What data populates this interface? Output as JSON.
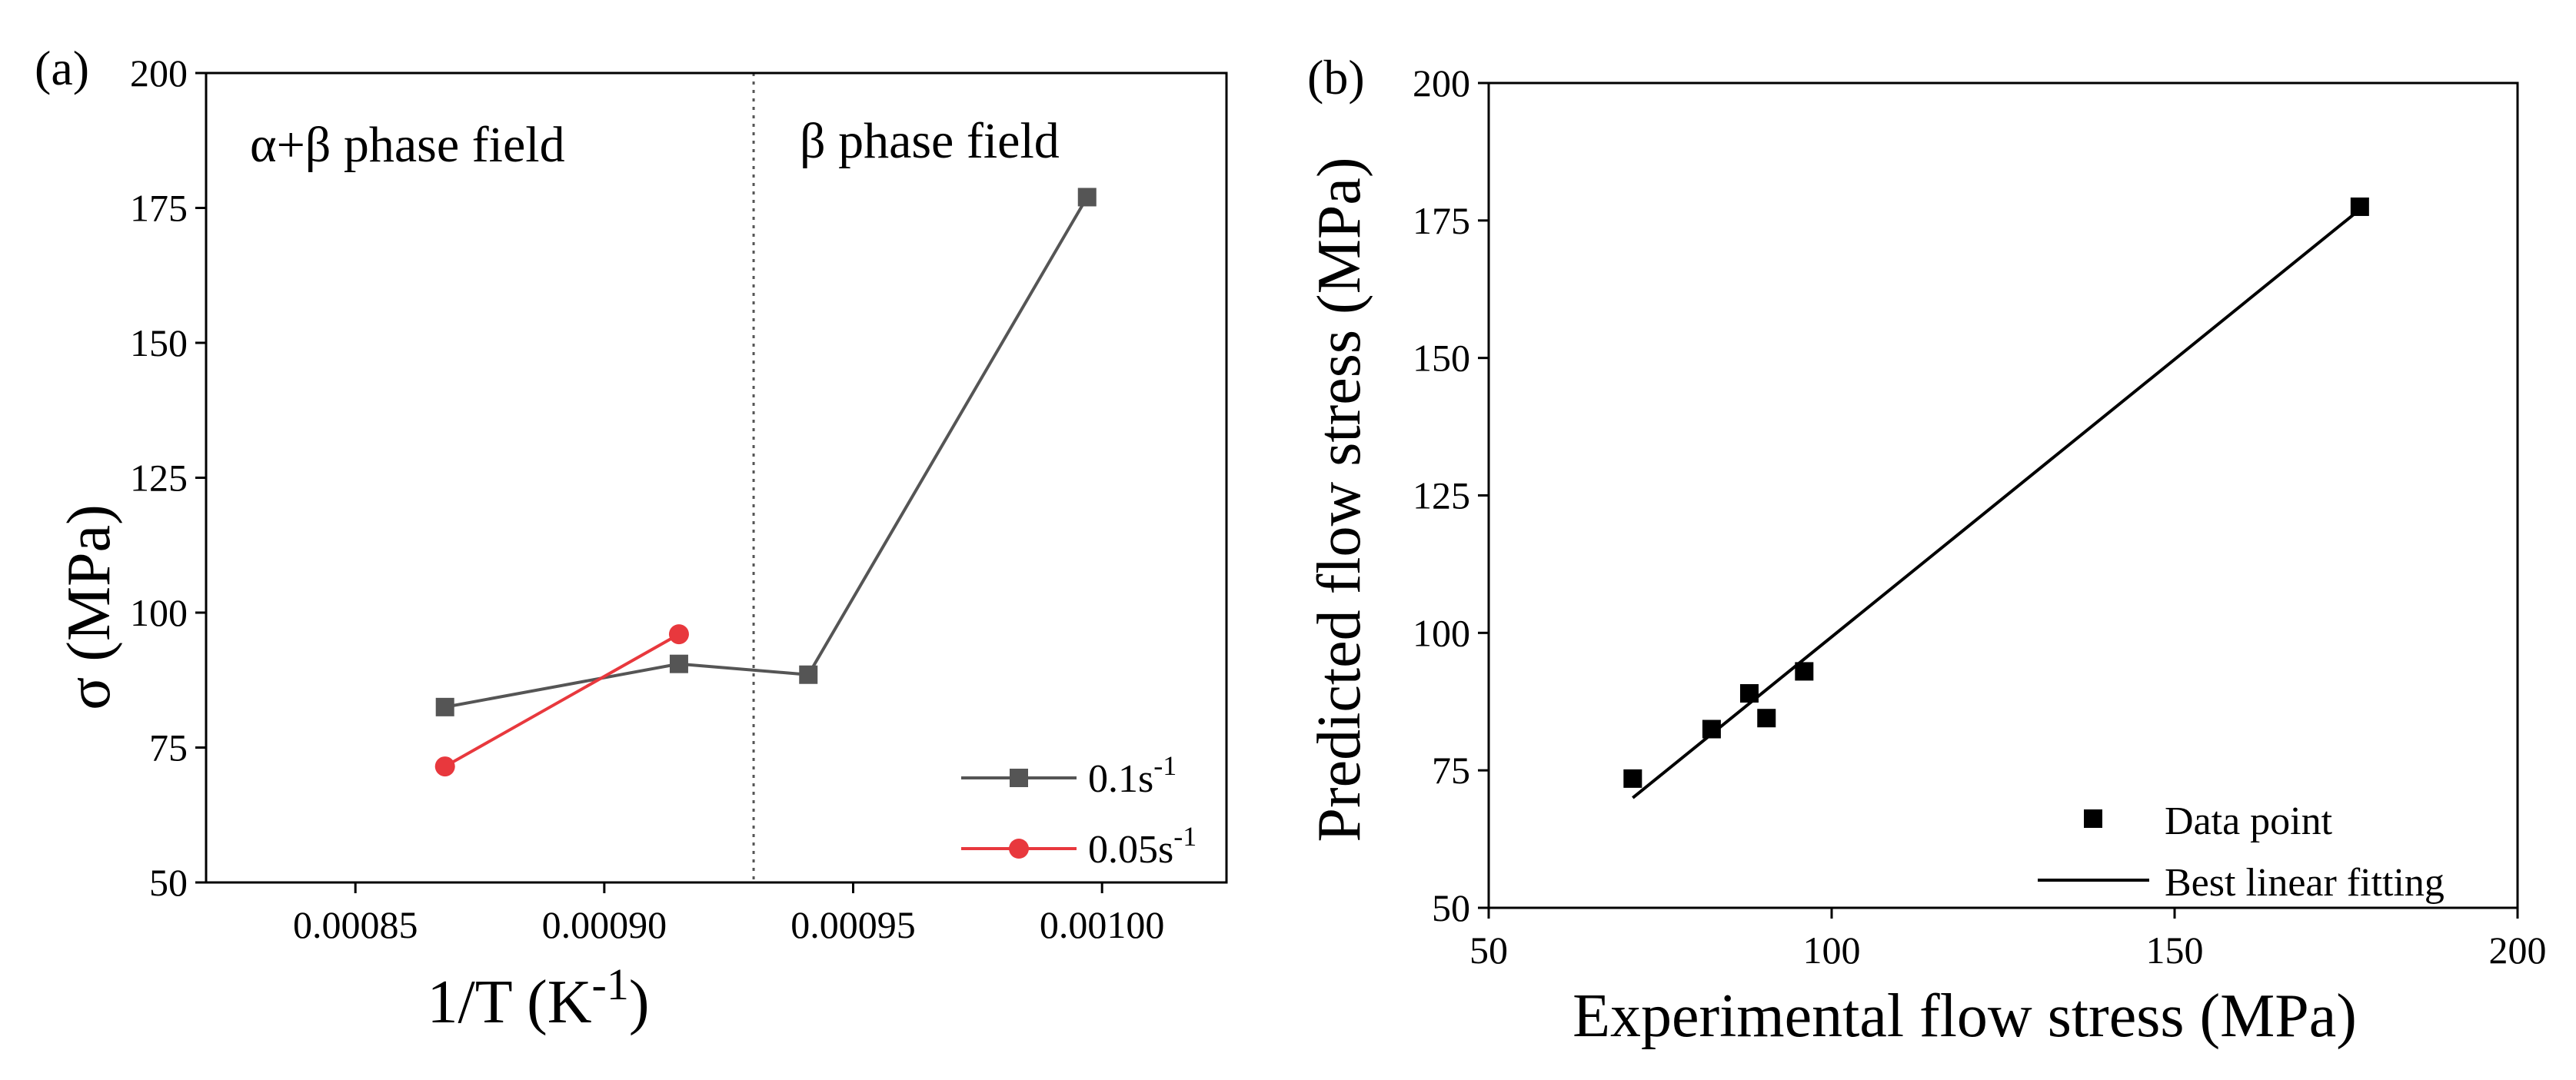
{
  "chart_data": [
    {
      "panel_label": "(a)",
      "type": "line",
      "xlabel": "1/T (K",
      "xlabel_sup": "-1",
      "xlabel_close": ")",
      "ylabel": "σ (MPa)",
      "xlim": [
        0.00082,
        0.001025
      ],
      "ylim": [
        50,
        200
      ],
      "xticks": [
        0.00085,
        0.0009,
        0.00095,
        0.001
      ],
      "xtick_labels": [
        "0.00085",
        "0.00090",
        "0.00095",
        "0.00100"
      ],
      "yticks": [
        50,
        75,
        100,
        125,
        150,
        175,
        200
      ],
      "ytick_labels": [
        "50",
        "75",
        "100",
        "125",
        "150",
        "175",
        "200"
      ],
      "divider_x": 0.00093,
      "annotations": [
        "α+β phase field",
        "β phase field"
      ],
      "legend_position": "bottom-right",
      "series": [
        {
          "name": "0.1s",
          "name_sup": "-1",
          "color": "#555555",
          "marker": "square",
          "x": [
            0.000868,
            0.000915,
            0.000941,
            0.000997
          ],
          "y": [
            82.5,
            90.5,
            88.5,
            177
          ]
        },
        {
          "name": "0.05s",
          "name_sup": "-1",
          "color": "#e8383d",
          "marker": "circle",
          "x": [
            0.000868,
            0.000915
          ],
          "y": [
            71.5,
            96
          ]
        }
      ]
    },
    {
      "panel_label": "(b)",
      "type": "scatter",
      "xlabel": "Experimental flow stress (MPa)",
      "ylabel": "Predicted flow stress (MPa)",
      "xlim": [
        50,
        200
      ],
      "ylim": [
        50,
        200
      ],
      "xticks": [
        50,
        100,
        150,
        200
      ],
      "xtick_labels": [
        "50",
        "100",
        "150",
        "200"
      ],
      "yticks": [
        50,
        75,
        100,
        125,
        150,
        175,
        200
      ],
      "ytick_labels": [
        "50",
        "75",
        "100",
        "125",
        "150",
        "175",
        "200"
      ],
      "legend_position": "bottom-right",
      "series": [
        {
          "name": "Data point",
          "marker": "square",
          "color": "#000000",
          "x": [
            71,
            82.5,
            88,
            90.5,
            96,
            177
          ],
          "y": [
            73.5,
            82.5,
            89,
            84.5,
            93,
            177.5
          ]
        }
      ],
      "fit_line": {
        "name": "Best linear fitting",
        "color": "#000000",
        "x": [
          71,
          177
        ],
        "y": [
          70,
          177
        ]
      }
    }
  ]
}
